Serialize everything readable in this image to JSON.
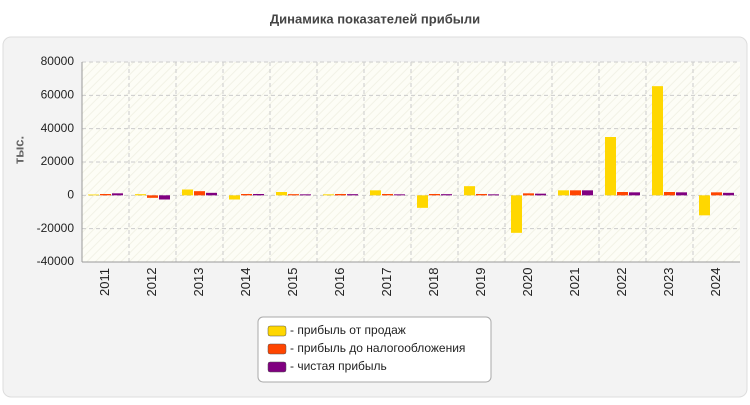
{
  "chart_data": {
    "type": "bar",
    "title": "Динамика показателей прибыли",
    "y_label": "тыс.",
    "categories": [
      "2011",
      "2012",
      "2013",
      "2014",
      "2015",
      "2016",
      "2017",
      "2018",
      "2019",
      "2020",
      "2021",
      "2022",
      "2023",
      "2024"
    ],
    "series": [
      {
        "name": "- прибыль от продаж",
        "color": "#ffd700",
        "values": [
          500,
          700,
          3500,
          -2500,
          2000,
          600,
          3000,
          -7500,
          5500,
          -22500,
          3000,
          35000,
          65500,
          -12000
        ]
      },
      {
        "name": "- прибыль до налогообложения",
        "color": "#ff4500",
        "values": [
          800,
          -1500,
          2500,
          800,
          700,
          800,
          800,
          800,
          800,
          1200,
          3000,
          2000,
          2000,
          1800
        ]
      },
      {
        "name": "- чистая прибыль",
        "color": "#800080",
        "values": [
          1200,
          -2500,
          1500,
          800,
          600,
          700,
          600,
          700,
          600,
          1000,
          3000,
          1800,
          1800,
          1500
        ]
      }
    ],
    "ylim": [
      -40000,
      80000
    ],
    "yticks": [
      -40000,
      -20000,
      0,
      20000,
      40000,
      60000,
      80000
    ],
    "grid": true
  }
}
